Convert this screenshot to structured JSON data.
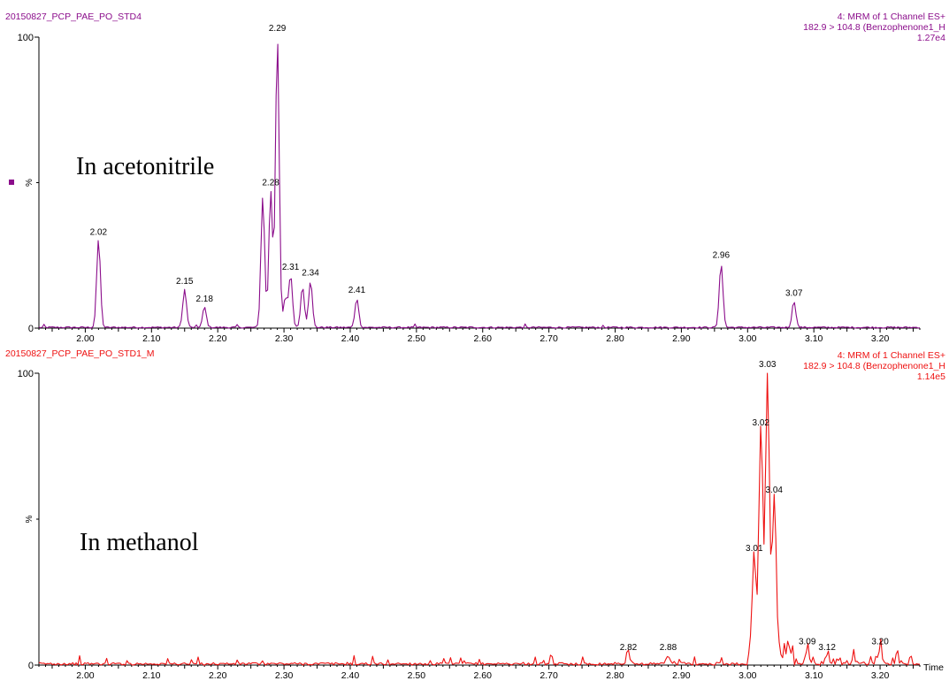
{
  "chart_data": [
    {
      "type": "line",
      "run_name": "20150827_PCP_PAE_PO_STD4",
      "header_lines": [
        "4: MRM of 1 Channel ES+",
        "182.9 > 104.8 (Benzophenone1_H",
        "1.27e4"
      ],
      "annotation": "In acetonitrile",
      "color": "#8b0d8b",
      "ylabel": "%",
      "xlim": [
        1.93,
        3.26
      ],
      "ylim": [
        0,
        100
      ],
      "ytick_labels": [
        "0",
        "100"
      ],
      "xtick_labels": [
        "2.00",
        "2.10",
        "2.20",
        "2.30",
        "2.40",
        "2.50",
        "2.60",
        "2.70",
        "2.80",
        "2.90",
        "3.00",
        "3.10",
        "3.20"
      ],
      "peaks": [
        {
          "x": 2.02,
          "y": 30,
          "label": "2.02"
        },
        {
          "x": 2.15,
          "y": 13,
          "label": "2.15"
        },
        {
          "x": 2.18,
          "y": 7,
          "label": "2.18"
        },
        {
          "x": 2.268,
          "y": 45,
          "label": ""
        },
        {
          "x": 2.28,
          "y": 47,
          "label": "2.28"
        },
        {
          "x": 2.29,
          "y": 100,
          "label": "2.29"
        },
        {
          "x": 2.302,
          "y": 10,
          "label": ""
        },
        {
          "x": 2.31,
          "y": 18,
          "label": "2.31"
        },
        {
          "x": 2.328,
          "y": 14,
          "label": ""
        },
        {
          "x": 2.34,
          "y": 16,
          "label": "2.34"
        },
        {
          "x": 2.41,
          "y": 10,
          "label": "2.41"
        },
        {
          "x": 2.96,
          "y": 22,
          "label": "2.96"
        },
        {
          "x": 3.07,
          "y": 9,
          "label": "3.07"
        }
      ]
    },
    {
      "type": "line",
      "run_name": "20150827_PCP_PAE_PO_STD1_M",
      "header_lines": [
        "4: MRM of 1 Channel ES+",
        "182.9 > 104.8 (Benzophenone1_H",
        "1.14e5"
      ],
      "annotation": "In methanol",
      "color": "#ee1111",
      "ylabel": "%",
      "xlabel": "Time",
      "xlim": [
        1.93,
        3.26
      ],
      "ylim": [
        0,
        100
      ],
      "ytick_labels": [
        "0",
        "100"
      ],
      "xtick_labels": [
        "2.00",
        "2.10",
        "2.20",
        "2.30",
        "2.40",
        "2.50",
        "2.60",
        "2.70",
        "2.80",
        "2.90",
        "3.00",
        "3.10",
        "3.20"
      ],
      "peaks": [
        {
          "x": 2.82,
          "y": 3,
          "label": "2.82"
        },
        {
          "x": 2.88,
          "y": 3,
          "label": "2.88"
        },
        {
          "x": 3.01,
          "y": 37,
          "label": "3.01"
        },
        {
          "x": 3.02,
          "y": 80,
          "label": "3.02"
        },
        {
          "x": 3.03,
          "y": 100,
          "label": "3.03"
        },
        {
          "x": 3.04,
          "y": 57,
          "label": "3.04"
        },
        {
          "x": 3.09,
          "y": 5,
          "label": "3.09"
        },
        {
          "x": 3.12,
          "y": 3,
          "label": "3.12"
        },
        {
          "x": 3.2,
          "y": 5,
          "label": "3.20"
        }
      ]
    }
  ]
}
